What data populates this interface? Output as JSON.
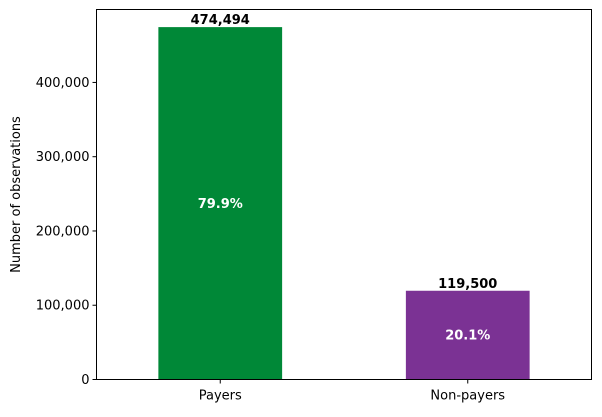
{
  "chart_data": {
    "type": "bar",
    "title": "",
    "xlabel": "",
    "ylabel": "Number of observations",
    "categories": [
      "Payers",
      "Non-payers"
    ],
    "values": [
      474494,
      119500
    ],
    "value_labels": [
      "474,494",
      "119,500"
    ],
    "percent_labels": [
      "79.9%",
      "20.1%"
    ],
    "colors": [
      "#008837",
      "#7b3294"
    ],
    "ylim": [
      0,
      498210
    ],
    "yticks": [
      0,
      100000,
      200000,
      300000,
      400000
    ],
    "ytick_labels": [
      "0",
      "100,000",
      "200,000",
      "300,000",
      "400,000"
    ],
    "grid": false,
    "legend": "none"
  }
}
